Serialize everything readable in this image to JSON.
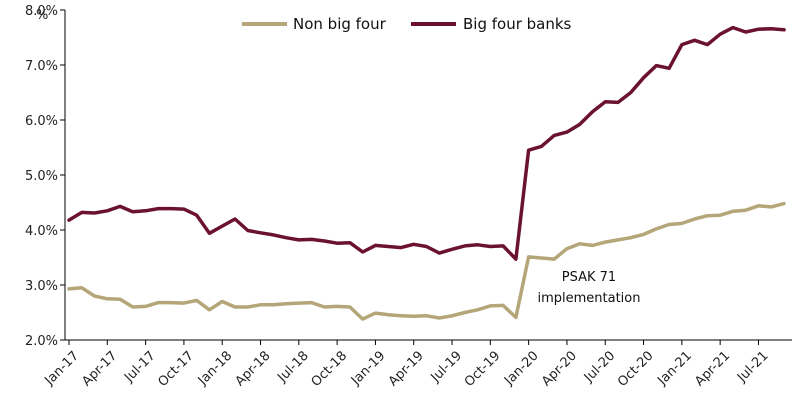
{
  "chart_data": {
    "type": "line",
    "y_unit": "%",
    "ylim": [
      2.0,
      8.0
    ],
    "y_ticks": [
      "2.0%",
      "3.0%",
      "4.0%",
      "5.0%",
      "6.0%",
      "7.0%",
      "8.0%"
    ],
    "x_tick_labels": [
      "Jan-17",
      "Apr-17",
      "Jul-17",
      "Oct-17",
      "Jan-18",
      "Apr-18",
      "Jul-18",
      "Oct-18",
      "Jan-19",
      "Apr-19",
      "Jul-19",
      "Oct-19",
      "Jan-20",
      "Apr-20",
      "Jul-20",
      "Oct-20",
      "Jan-21",
      "Apr-21",
      "Jul-21"
    ],
    "x_start": "Jan-17",
    "x_end": "Sep-21",
    "grid": false,
    "legend_position": "top",
    "annotation": [
      "PSAK 71",
      "implementation"
    ],
    "series": [
      {
        "name": "Non big four",
        "color": "#b4a678",
        "values": [
          2.93,
          2.95,
          2.8,
          2.75,
          2.74,
          2.6,
          2.61,
          2.68,
          2.68,
          2.67,
          2.72,
          2.55,
          2.7,
          2.6,
          2.6,
          2.64,
          2.64,
          2.66,
          2.67,
          2.68,
          2.6,
          2.61,
          2.6,
          2.38,
          2.49,
          2.46,
          2.44,
          2.43,
          2.44,
          2.4,
          2.44,
          2.5,
          2.55,
          2.62,
          2.63,
          2.41,
          3.51,
          3.49,
          3.47,
          3.66,
          3.75,
          3.72,
          3.78,
          3.82,
          3.86,
          3.92,
          4.02,
          4.1,
          4.12,
          4.2,
          4.26,
          4.27,
          4.34,
          4.36,
          4.44,
          4.42,
          4.48
        ]
      },
      {
        "name": "Big four banks",
        "color": "#6b1230",
        "values": [
          4.18,
          4.32,
          4.31,
          4.35,
          4.43,
          4.33,
          4.35,
          4.39,
          4.39,
          4.38,
          4.27,
          3.94,
          4.07,
          4.2,
          3.99,
          3.95,
          3.91,
          3.86,
          3.82,
          3.83,
          3.8,
          3.76,
          3.77,
          3.6,
          3.72,
          3.7,
          3.68,
          3.74,
          3.7,
          3.58,
          3.65,
          3.71,
          3.73,
          3.7,
          3.71,
          3.47,
          5.45,
          5.52,
          5.72,
          5.78,
          5.92,
          6.15,
          6.33,
          6.32,
          6.5,
          6.77,
          6.99,
          6.94,
          7.37,
          7.45,
          7.37,
          7.56,
          7.68,
          7.6,
          7.65,
          7.66,
          7.64
        ]
      }
    ]
  }
}
